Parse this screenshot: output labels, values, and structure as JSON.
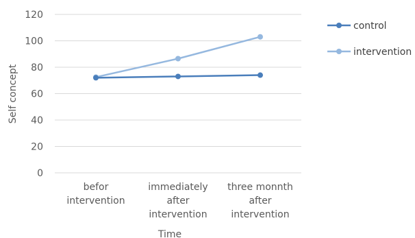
{
  "chart_data": {
    "type": "line",
    "categories": [
      [
        "befor",
        "intervention"
      ],
      [
        "immediately",
        "after",
        "intervention"
      ],
      [
        "three monnth",
        "after",
        "intervention"
      ]
    ],
    "series": [
      {
        "name": "control",
        "values": [
          72,
          73,
          74
        ],
        "color": "#4a7ebb"
      },
      {
        "name": "intervention",
        "values": [
          72.5,
          86.5,
          103
        ],
        "color": "#95b8df"
      }
    ],
    "xlabel": "Time",
    "ylabel": "Self concept",
    "ylim": [
      0,
      120
    ],
    "yticks": [
      "0",
      "20",
      "40",
      "60",
      "80",
      "100",
      "120"
    ],
    "grid": true,
    "legend": "right"
  }
}
